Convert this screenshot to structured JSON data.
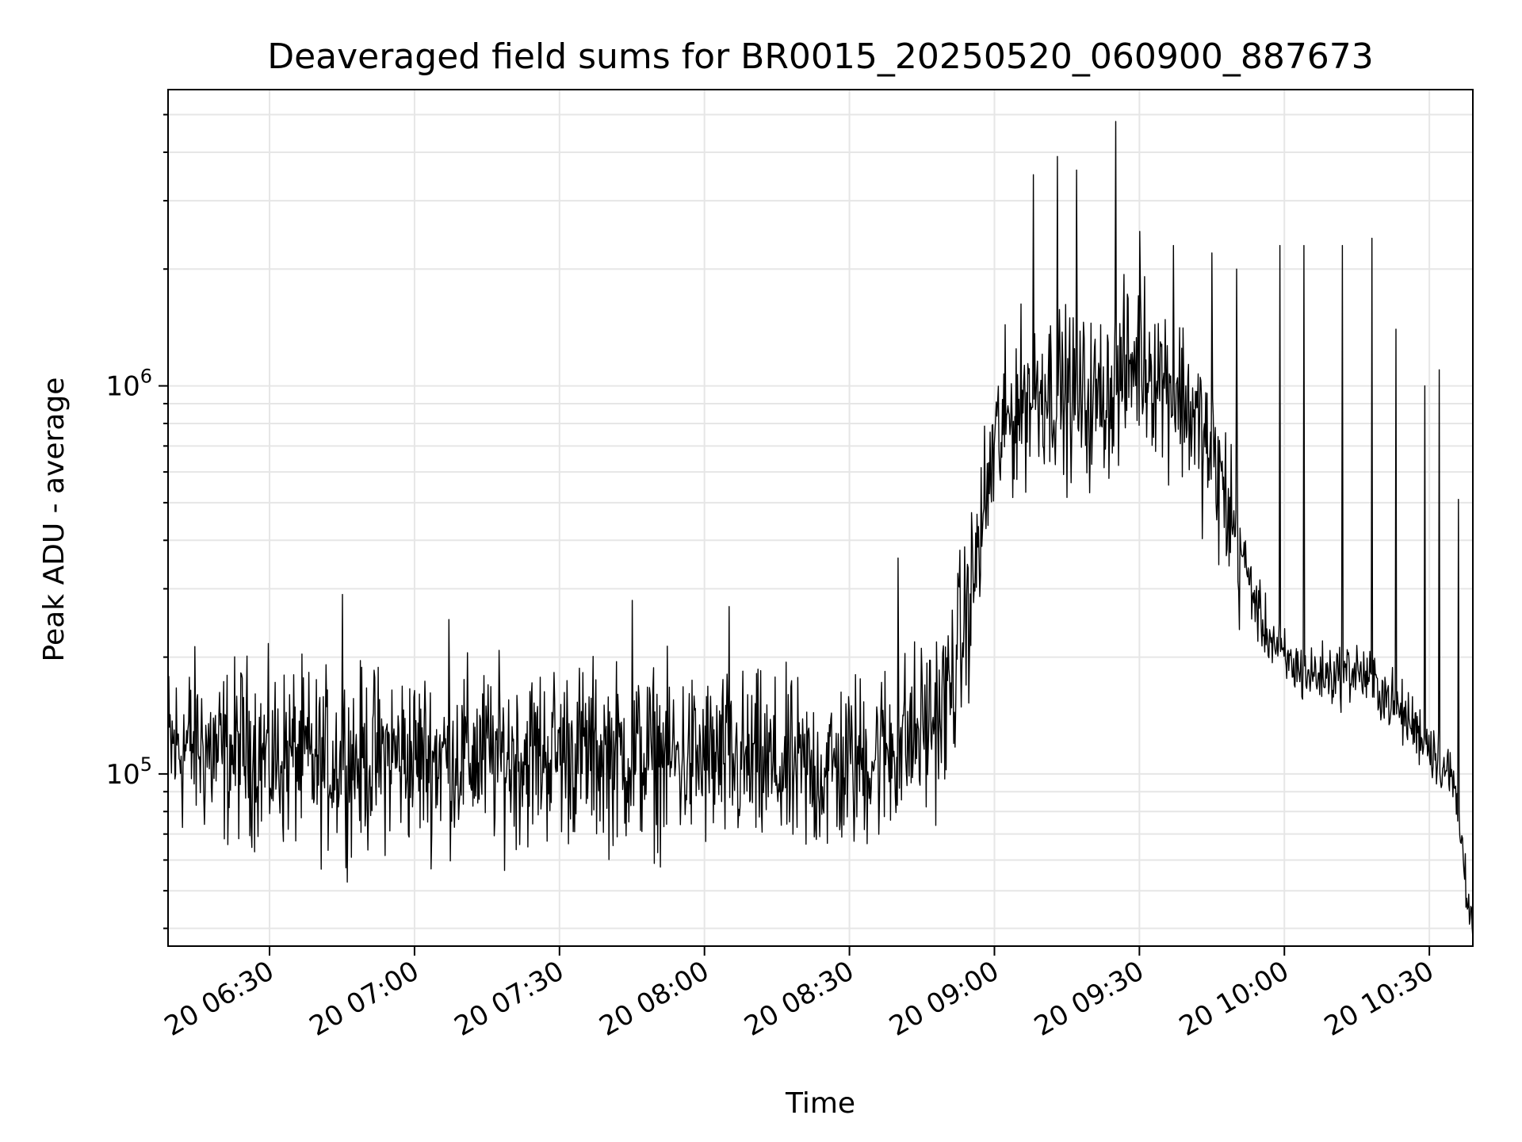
{
  "chart_data": {
    "type": "line",
    "title": "Deaveraged field sums for BR0015_20250520_060900_887673",
    "xlabel": "Time",
    "ylabel": "Peak ADU - average",
    "y_scale": "log",
    "ylim": [
      36000,
      5800000
    ],
    "xlim": [
      "2025-05-20 06:09",
      "2025-05-20 10:39"
    ],
    "grid": true,
    "line_color": "#000000",
    "grid_color": "#e6e6e6",
    "x_ticks": [
      {
        "t": "2025-05-20 06:30",
        "label": "20 06:30"
      },
      {
        "t": "2025-05-20 07:00",
        "label": "20 07:00"
      },
      {
        "t": "2025-05-20 07:30",
        "label": "20 07:30"
      },
      {
        "t": "2025-05-20 08:00",
        "label": "20 08:00"
      },
      {
        "t": "2025-05-20 08:30",
        "label": "20 08:30"
      },
      {
        "t": "2025-05-20 09:00",
        "label": "20 09:00"
      },
      {
        "t": "2025-05-20 09:30",
        "label": "20 09:30"
      },
      {
        "t": "2025-05-20 10:00",
        "label": "20 10:00"
      },
      {
        "t": "2025-05-20 10:30",
        "label": "20 10:30"
      }
    ],
    "y_ticks": [
      {
        "value": 100000,
        "base": "10",
        "exp": "5"
      },
      {
        "value": 1000000,
        "base": "10",
        "exp": "6"
      }
    ],
    "series": [
      {
        "x": [
          "2025-05-20 06:09",
          "2025-05-20 06:15",
          "2025-05-20 06:20",
          "2025-05-20 06:25",
          "2025-05-20 06:30",
          "2025-05-20 06:35",
          "2025-05-20 06:40",
          "2025-05-20 06:45",
          "2025-05-20 06:50",
          "2025-05-20 06:55",
          "2025-05-20 07:00",
          "2025-05-20 07:10",
          "2025-05-20 07:20",
          "2025-05-20 07:30",
          "2025-05-20 07:40",
          "2025-05-20 07:50",
          "2025-05-20 08:00",
          "2025-05-20 08:10",
          "2025-05-20 08:20",
          "2025-05-20 08:30",
          "2025-05-20 08:35",
          "2025-05-20 08:40",
          "2025-05-20 08:45",
          "2025-05-20 08:50",
          "2025-05-20 08:55",
          "2025-05-20 09:00",
          "2025-05-20 09:05",
          "2025-05-20 09:10",
          "2025-05-20 09:15",
          "2025-05-20 09:20",
          "2025-05-20 09:25",
          "2025-05-20 09:30",
          "2025-05-20 09:35",
          "2025-05-20 09:40",
          "2025-05-20 09:45",
          "2025-05-20 09:50",
          "2025-05-20 09:55",
          "2025-05-20 10:00",
          "2025-05-20 10:05",
          "2025-05-20 10:10",
          "2025-05-20 10:15",
          "2025-05-20 10:20",
          "2025-05-20 10:25",
          "2025-05-20 10:30",
          "2025-05-20 10:35",
          "2025-05-20 10:39"
        ],
        "y": [
          115000,
          120000,
          110000,
          118000,
          108000,
          112000,
          105000,
          110000,
          108000,
          112000,
          110000,
          112000,
          110000,
          115000,
          112000,
          110000,
          108000,
          105000,
          100000,
          105000,
          112000,
          118000,
          130000,
          150000,
          280000,
          700000,
          900000,
          1000000,
          950000,
          900000,
          1000000,
          1200000,
          1050000,
          900000,
          650000,
          420000,
          250000,
          195000,
          180000,
          180000,
          185000,
          165000,
          140000,
          120000,
          95000,
          40000
        ]
      }
    ],
    "spikes": [
      {
        "t": "2025-05-20 06:45",
        "y": 290000
      },
      {
        "t": "2025-05-20 07:07",
        "y": 250000
      },
      {
        "t": "2025-05-20 07:45",
        "y": 280000
      },
      {
        "t": "2025-05-20 08:05",
        "y": 270000
      },
      {
        "t": "2025-05-20 08:40",
        "y": 360000
      },
      {
        "t": "2025-05-20 09:08",
        "y": 3500000
      },
      {
        "t": "2025-05-20 09:13",
        "y": 3900000
      },
      {
        "t": "2025-05-20 09:17",
        "y": 3600000
      },
      {
        "t": "2025-05-20 09:25",
        "y": 4800000
      },
      {
        "t": "2025-05-20 09:30",
        "y": 2500000
      },
      {
        "t": "2025-05-20 09:37",
        "y": 2300000
      },
      {
        "t": "2025-05-20 09:45",
        "y": 2200000
      },
      {
        "t": "2025-05-20 09:50",
        "y": 2000000
      },
      {
        "t": "2025-05-20 09:59",
        "y": 2300000
      },
      {
        "t": "2025-05-20 10:04",
        "y": 2300000
      },
      {
        "t": "2025-05-20 10:12",
        "y": 2300000
      },
      {
        "t": "2025-05-20 10:18",
        "y": 2400000
      },
      {
        "t": "2025-05-20 10:23",
        "y": 1400000
      },
      {
        "t": "2025-05-20 10:29",
        "y": 1000000
      },
      {
        "t": "2025-05-20 10:32",
        "y": 1100000
      },
      {
        "t": "2025-05-20 10:36",
        "y": 510000
      }
    ]
  }
}
